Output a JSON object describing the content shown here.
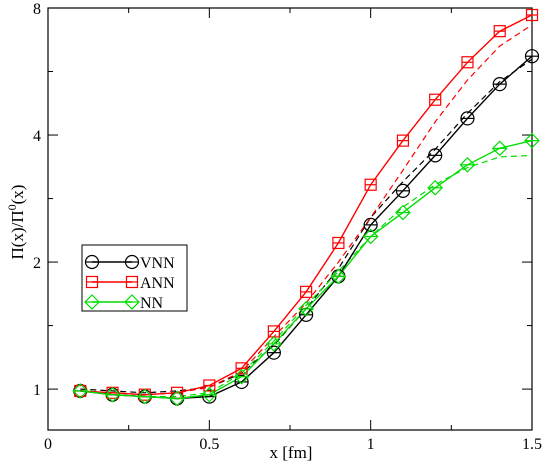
{
  "chart_data": {
    "type": "line",
    "xlabel": "x [fm]",
    "ylabel_parts": {
      "pi": "Π(x)/Π",
      "sup": "0",
      "tail": "(x)"
    },
    "xlim": [
      0,
      1.5
    ],
    "ylim": [
      0.8,
      8
    ],
    "yscale": "log2",
    "x_ticks": [
      0,
      0.5,
      1,
      1.5
    ],
    "x_tick_labels": [
      "0",
      "0.5",
      "1",
      "1.5"
    ],
    "y_ticks": [
      1,
      2,
      4,
      8
    ],
    "y_tick_labels": [
      "1",
      "2",
      "4",
      "8"
    ],
    "legend_position": "middle-left",
    "x": [
      0.1,
      0.2,
      0.3,
      0.4,
      0.5,
      0.6,
      0.7,
      0.8,
      0.9,
      1.0,
      1.1,
      1.2,
      1.3,
      1.4,
      1.5
    ],
    "series": [
      {
        "name": "VNN",
        "color": "#000000",
        "marker": "circle",
        "values": [
          0.99,
          0.97,
          0.96,
          0.95,
          0.96,
          1.04,
          1.22,
          1.5,
          1.85,
          2.45,
          2.95,
          3.58,
          4.38,
          5.28,
          6.15
        ],
        "dashed_x": [
          0.1,
          0.2,
          0.3,
          0.4,
          0.5,
          0.6,
          0.7,
          0.8,
          0.9,
          1.0,
          1.1,
          1.2,
          1.3,
          1.4,
          1.5
        ],
        "dashed_values": [
          1.0,
          0.99,
          0.98,
          0.99,
          1.01,
          1.09,
          1.27,
          1.55,
          1.93,
          2.55,
          3.1,
          3.7,
          4.5,
          5.35,
          6.05
        ]
      },
      {
        "name": "ANN",
        "color": "#ff0000",
        "marker": "square",
        "values": [
          0.99,
          0.98,
          0.97,
          0.98,
          1.02,
          1.12,
          1.37,
          1.7,
          2.22,
          3.05,
          3.88,
          4.85,
          5.95,
          7.05,
          7.7
        ],
        "dashed_x": [
          0.1,
          0.2,
          0.3,
          0.4,
          0.5,
          0.6,
          0.7,
          0.8,
          0.9,
          1.0,
          1.1,
          1.2,
          1.3,
          1.4,
          1.5
        ],
        "dashed_values": [
          0.99,
          0.98,
          0.97,
          0.98,
          1.01,
          1.1,
          1.33,
          1.6,
          2.0,
          2.55,
          3.3,
          4.3,
          5.4,
          6.5,
          7.3
        ]
      },
      {
        "name": "NN",
        "color": "#00dd00",
        "marker": "diamond",
        "values": [
          0.99,
          0.97,
          0.96,
          0.95,
          0.97,
          1.07,
          1.28,
          1.55,
          1.85,
          2.3,
          2.62,
          3.0,
          3.4,
          3.72,
          3.88
        ],
        "dashed_x": [
          0.1,
          0.2,
          0.3,
          0.4,
          0.5,
          0.6,
          0.7,
          0.8,
          0.9,
          1.0,
          1.1,
          1.2,
          1.3,
          1.4,
          1.5
        ],
        "dashed_values": [
          0.99,
          0.97,
          0.96,
          0.96,
          0.98,
          1.09,
          1.3,
          1.58,
          1.9,
          2.3,
          2.7,
          3.05,
          3.35,
          3.55,
          3.58
        ]
      }
    ]
  }
}
